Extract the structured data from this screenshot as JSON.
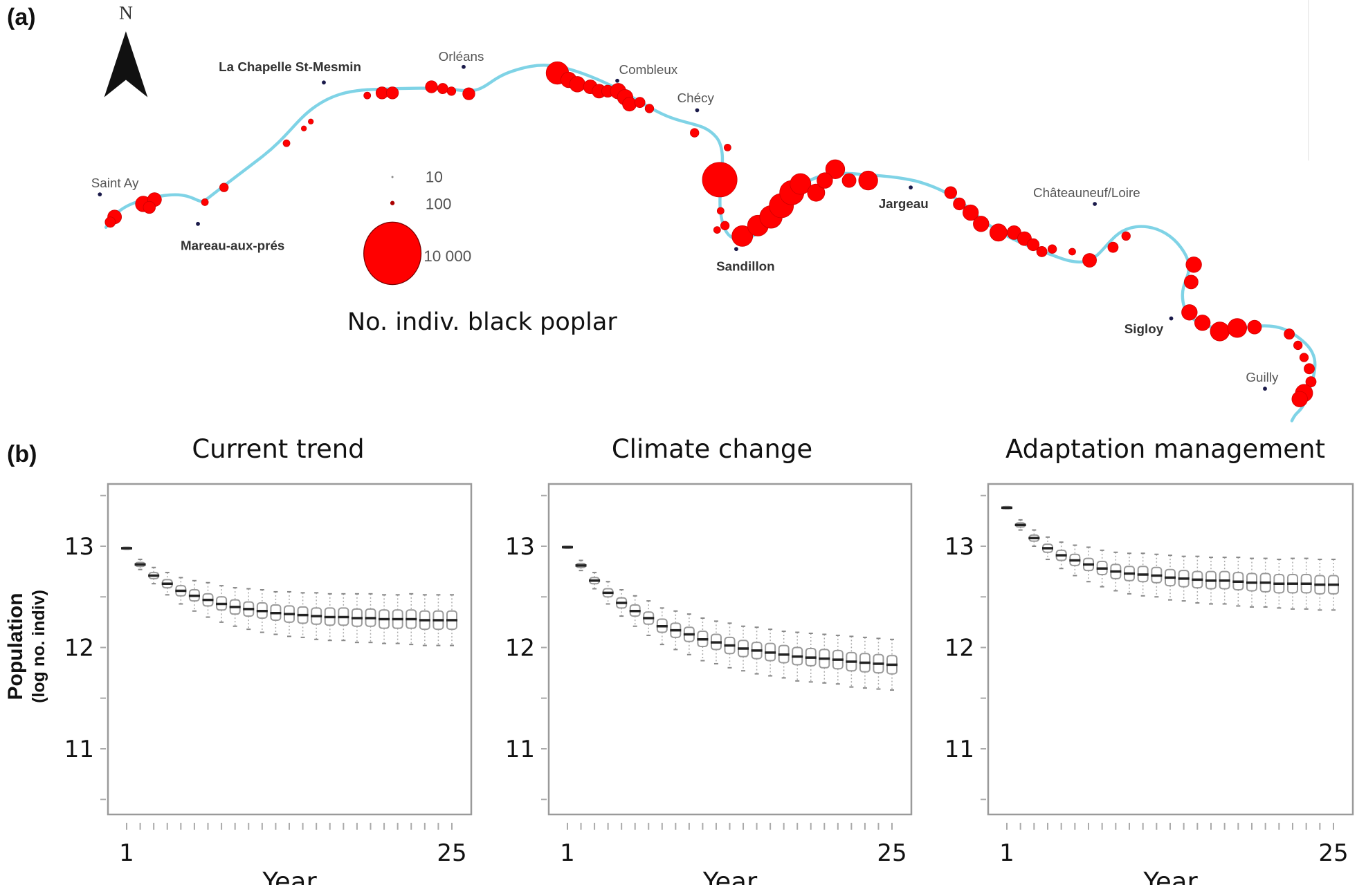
{
  "panels": {
    "a": "(a)",
    "b": "(b)"
  },
  "map": {
    "north_label": "N",
    "towns": [
      {
        "name": "Saint Ay",
        "bold": false
      },
      {
        "name": "Mareau-aux-prés",
        "bold": true
      },
      {
        "name": "La Chapelle St-Mesmin",
        "bold": true
      },
      {
        "name": "Orléans",
        "bold": false
      },
      {
        "name": "Combleux",
        "bold": false
      },
      {
        "name": "Chécy",
        "bold": false
      },
      {
        "name": "Sandillon",
        "bold": true
      },
      {
        "name": "Jargeau",
        "bold": true
      },
      {
        "name": "Châteauneuf/Loire",
        "bold": false
      },
      {
        "name": "Sigloy",
        "bold": true
      },
      {
        "name": "Guilly",
        "bold": false
      }
    ],
    "legend": {
      "title": "No. indiv. black poplar",
      "entries": [
        "10",
        "100",
        "10 000"
      ]
    },
    "colors": {
      "river": "#7fd3e6",
      "poplar": "#ff0000",
      "town": "#1a1a4a"
    }
  },
  "y_axis_label": {
    "line1": "Population",
    "line2": "(log no. indiv)"
  },
  "chart_data": [
    {
      "type": "boxplot",
      "title": "Current trend",
      "xlabel": "Year",
      "xtick_labels": [
        "1",
        "25"
      ],
      "x": [
        1,
        2,
        3,
        4,
        5,
        6,
        7,
        8,
        9,
        10,
        11,
        12,
        13,
        14,
        15,
        16,
        17,
        18,
        19,
        20,
        21,
        22,
        23,
        24,
        25
      ],
      "ylim": [
        10.4,
        13.6
      ],
      "ytick_labels": [
        "13",
        "12",
        "11"
      ],
      "median": [
        12.98,
        12.82,
        12.71,
        12.63,
        12.56,
        12.51,
        12.47,
        12.43,
        12.4,
        12.38,
        12.36,
        12.34,
        12.33,
        12.32,
        12.31,
        12.3,
        12.3,
        12.29,
        12.29,
        12.28,
        12.28,
        12.28,
        12.27,
        12.27,
        12.27
      ],
      "q1": [
        12.97,
        12.8,
        12.68,
        12.59,
        12.51,
        12.46,
        12.41,
        12.37,
        12.33,
        12.31,
        12.29,
        12.27,
        12.25,
        12.24,
        12.23,
        12.22,
        12.22,
        12.21,
        12.21,
        12.19,
        12.19,
        12.19,
        12.18,
        12.18,
        12.18
      ],
      "q3": [
        12.99,
        12.84,
        12.74,
        12.67,
        12.61,
        12.57,
        12.53,
        12.5,
        12.47,
        12.45,
        12.44,
        12.42,
        12.41,
        12.4,
        12.39,
        12.39,
        12.39,
        12.38,
        12.38,
        12.37,
        12.37,
        12.37,
        12.36,
        12.36,
        12.36
      ],
      "whisker_low": [
        12.97,
        12.77,
        12.63,
        12.52,
        12.43,
        12.36,
        12.3,
        12.25,
        12.21,
        12.18,
        12.15,
        12.13,
        12.11,
        12.1,
        12.08,
        12.07,
        12.07,
        12.05,
        12.05,
        12.04,
        12.04,
        12.03,
        12.02,
        12.02,
        12.02
      ],
      "whisker_high": [
        12.99,
        12.87,
        12.79,
        12.74,
        12.69,
        12.66,
        12.64,
        12.61,
        12.59,
        12.58,
        12.57,
        12.55,
        12.55,
        12.54,
        12.54,
        12.53,
        12.53,
        12.53,
        12.53,
        12.52,
        12.52,
        12.53,
        12.52,
        12.52,
        12.52
      ]
    },
    {
      "type": "boxplot",
      "title": "Climate change",
      "xlabel": "Year",
      "xtick_labels": [
        "1",
        "25"
      ],
      "x": [
        1,
        2,
        3,
        4,
        5,
        6,
        7,
        8,
        9,
        10,
        11,
        12,
        13,
        14,
        15,
        16,
        17,
        18,
        19,
        20,
        21,
        22,
        23,
        24,
        25
      ],
      "ylim": [
        10.4,
        13.6
      ],
      "ytick_labels": [
        "13",
        "12",
        "11"
      ],
      "median": [
        12.99,
        12.81,
        12.66,
        12.54,
        12.44,
        12.36,
        12.29,
        12.21,
        12.17,
        12.13,
        12.08,
        12.05,
        12.02,
        11.99,
        11.97,
        11.95,
        11.93,
        11.91,
        11.9,
        11.89,
        11.88,
        11.86,
        11.85,
        11.84,
        11.83
      ],
      "q1": [
        12.98,
        12.79,
        12.63,
        12.5,
        12.39,
        12.31,
        12.23,
        12.15,
        12.1,
        12.06,
        12.01,
        11.98,
        11.94,
        11.91,
        11.89,
        11.87,
        11.85,
        11.83,
        11.82,
        11.8,
        11.79,
        11.77,
        11.76,
        11.75,
        11.74
      ],
      "q3": [
        13.0,
        12.83,
        12.69,
        12.58,
        12.49,
        12.42,
        12.35,
        12.28,
        12.24,
        12.2,
        12.16,
        12.13,
        12.1,
        12.07,
        12.05,
        12.04,
        12.02,
        12.0,
        11.99,
        11.98,
        11.97,
        11.95,
        11.94,
        11.93,
        11.92
      ],
      "whisker_low": [
        12.98,
        12.76,
        12.58,
        12.43,
        12.31,
        12.21,
        12.12,
        12.03,
        11.98,
        11.93,
        11.87,
        11.84,
        11.8,
        11.77,
        11.74,
        11.72,
        11.7,
        11.67,
        11.66,
        11.65,
        11.64,
        11.61,
        11.6,
        11.59,
        11.58
      ],
      "whisker_high": [
        13.0,
        12.86,
        12.74,
        12.65,
        12.57,
        12.51,
        12.46,
        12.39,
        12.36,
        12.33,
        12.29,
        12.26,
        12.24,
        12.21,
        12.2,
        12.18,
        12.16,
        12.15,
        12.14,
        12.13,
        12.12,
        12.11,
        12.1,
        12.09,
        12.08
      ]
    },
    {
      "type": "boxplot",
      "title": "Adaptation management",
      "xlabel": "Year",
      "xtick_labels": [
        "1",
        "25"
      ],
      "x": [
        1,
        2,
        3,
        4,
        5,
        6,
        7,
        8,
        9,
        10,
        11,
        12,
        13,
        14,
        15,
        16,
        17,
        18,
        19,
        20,
        21,
        22,
        23,
        24,
        25
      ],
      "ylim": [
        10.4,
        13.6
      ],
      "ytick_labels": [
        "13",
        "12",
        "11"
      ],
      "median": [
        13.38,
        13.21,
        13.08,
        12.98,
        12.91,
        12.86,
        12.82,
        12.78,
        12.75,
        12.73,
        12.72,
        12.71,
        12.69,
        12.68,
        12.67,
        12.66,
        12.66,
        12.65,
        12.64,
        12.64,
        12.63,
        12.63,
        12.63,
        12.62,
        12.62
      ],
      "q1": [
        13.37,
        13.19,
        13.05,
        12.94,
        12.86,
        12.81,
        12.76,
        12.72,
        12.68,
        12.66,
        12.65,
        12.64,
        12.61,
        12.6,
        12.59,
        12.58,
        12.58,
        12.57,
        12.56,
        12.55,
        12.54,
        12.54,
        12.54,
        12.53,
        12.53
      ],
      "q3": [
        13.39,
        13.23,
        13.11,
        13.02,
        12.96,
        12.92,
        12.88,
        12.85,
        12.82,
        12.8,
        12.8,
        12.79,
        12.77,
        12.76,
        12.75,
        12.75,
        12.75,
        12.74,
        12.73,
        12.73,
        12.72,
        12.72,
        12.72,
        12.71,
        12.71
      ],
      "whisker_low": [
        13.37,
        13.16,
        13.0,
        12.87,
        12.78,
        12.71,
        12.65,
        12.6,
        12.56,
        12.53,
        12.51,
        12.5,
        12.47,
        12.46,
        12.44,
        12.43,
        12.43,
        12.41,
        12.4,
        12.4,
        12.39,
        12.38,
        12.38,
        12.37,
        12.37
      ],
      "whisker_high": [
        13.39,
        13.26,
        13.16,
        13.09,
        13.04,
        13.01,
        12.99,
        12.96,
        12.94,
        12.93,
        12.93,
        12.92,
        12.91,
        12.9,
        12.9,
        12.89,
        12.89,
        12.89,
        12.88,
        12.88,
        12.87,
        12.88,
        12.88,
        12.87,
        12.87
      ]
    }
  ]
}
